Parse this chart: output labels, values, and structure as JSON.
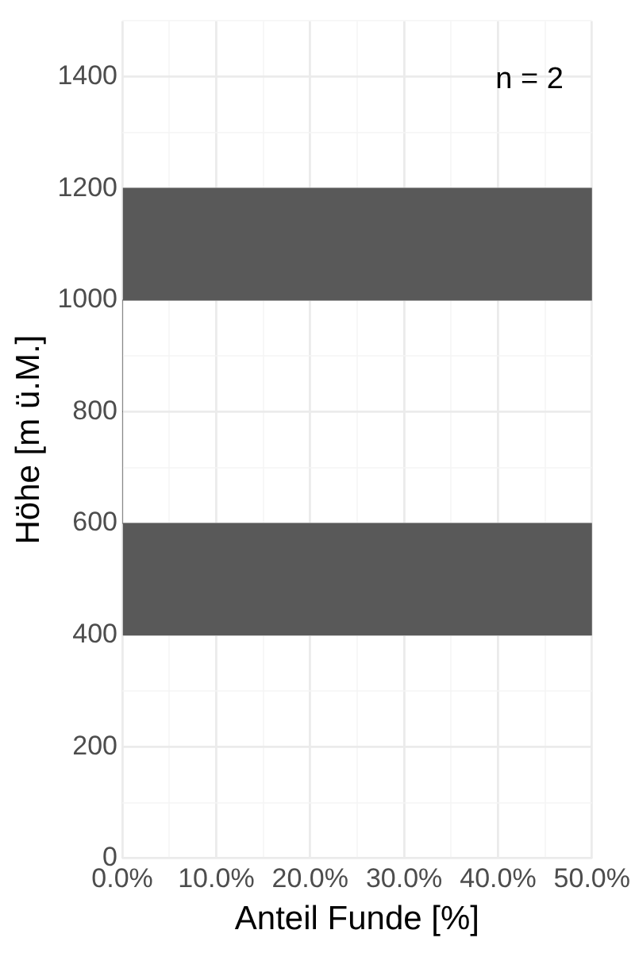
{
  "chart_data": {
    "type": "histogram",
    "orientation": "horizontal",
    "xlabel": "Anteil Funde [%]",
    "ylabel": "Höhe [m ü.M.]",
    "bins": [
      400,
      600,
      800,
      1000,
      1200
    ],
    "values": [
      50,
      0,
      0,
      50
    ],
    "color": "#595959",
    "xlim": [
      0,
      50
    ],
    "xticks": [
      {
        "value": 0,
        "label": "0.0%"
      },
      {
        "value": 5,
        "label": null
      },
      {
        "value": 10,
        "label": "10.0%"
      },
      {
        "value": 15,
        "label": null
      },
      {
        "value": 20,
        "label": "20.0%"
      },
      {
        "value": 25,
        "label": null
      },
      {
        "value": 30,
        "label": "30.0%"
      },
      {
        "value": 35,
        "label": null
      },
      {
        "value": 40,
        "label": "40.0%"
      },
      {
        "value": 45,
        "label": null
      },
      {
        "value": 50,
        "label": "50.0%"
      }
    ],
    "ylim": [
      0,
      1500
    ],
    "yticks": [
      0,
      {
        "value": 100,
        "label": null
      },
      200,
      {
        "value": 300,
        "label": null
      },
      400,
      600,
      {
        "value": 700,
        "label": null
      },
      800,
      {
        "value": 900,
        "label": null
      },
      1000,
      1200,
      {
        "value": 1300,
        "label": null
      },
      1400,
      {
        "value": 1500,
        "label": null
      }
    ],
    "grid": true,
    "annotations": [
      "n = 2"
    ]
  }
}
